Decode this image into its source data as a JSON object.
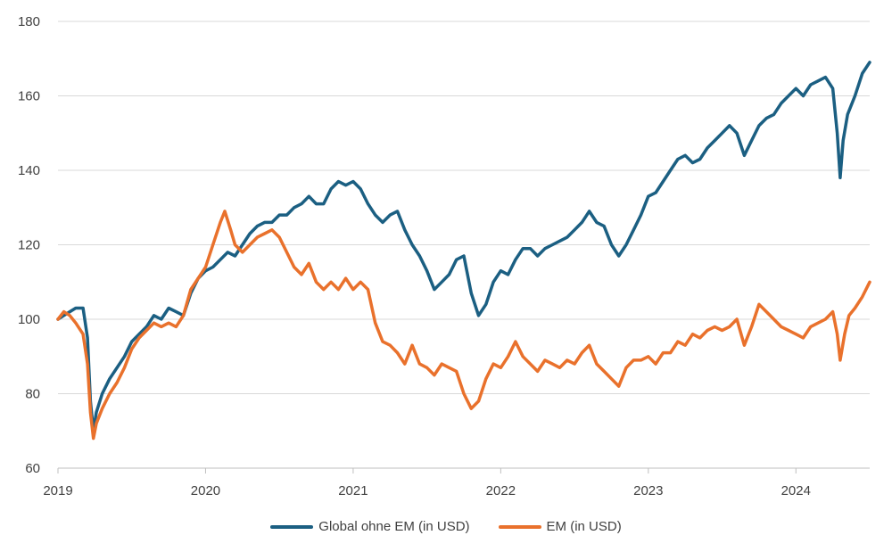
{
  "chart_data": {
    "type": "line",
    "title": "",
    "xlabel": "",
    "ylabel": "",
    "ylim": [
      60,
      180
    ],
    "yticks": [
      60,
      80,
      100,
      120,
      140,
      160,
      180
    ],
    "xlim": [
      2019.0,
      2024.5
    ],
    "xticks": [
      {
        "value": 2019,
        "label": "2019"
      },
      {
        "value": 2020,
        "label": "2020"
      },
      {
        "value": 2021,
        "label": "2021"
      },
      {
        "value": 2022,
        "label": "2022"
      },
      {
        "value": 2023,
        "label": "2023"
      },
      {
        "value": 2024,
        "label": "2024"
      }
    ],
    "grid": true,
    "legend_position": "bottom-center",
    "series": [
      {
        "name": "Global ohne EM (in USD)",
        "color": "#1B5F82",
        "points": [
          [
            2019.0,
            100
          ],
          [
            2019.04,
            101
          ],
          [
            2019.08,
            102
          ],
          [
            2019.12,
            103
          ],
          [
            2019.17,
            103
          ],
          [
            2019.2,
            95
          ],
          [
            2019.22,
            78
          ],
          [
            2019.24,
            70
          ],
          [
            2019.26,
            75
          ],
          [
            2019.3,
            80
          ],
          [
            2019.35,
            84
          ],
          [
            2019.4,
            87
          ],
          [
            2019.45,
            90
          ],
          [
            2019.5,
            94
          ],
          [
            2019.55,
            96
          ],
          [
            2019.6,
            98
          ],
          [
            2019.65,
            101
          ],
          [
            2019.7,
            100
          ],
          [
            2019.75,
            103
          ],
          [
            2019.8,
            102
          ],
          [
            2019.85,
            101
          ],
          [
            2019.9,
            107
          ],
          [
            2019.95,
            111
          ],
          [
            2020.0,
            113
          ],
          [
            2020.05,
            114
          ],
          [
            2020.1,
            116
          ],
          [
            2020.15,
            118
          ],
          [
            2020.2,
            117
          ],
          [
            2020.25,
            120
          ],
          [
            2020.3,
            123
          ],
          [
            2020.35,
            125
          ],
          [
            2020.4,
            126
          ],
          [
            2020.45,
            126
          ],
          [
            2020.5,
            128
          ],
          [
            2020.55,
            128
          ],
          [
            2020.6,
            130
          ],
          [
            2020.65,
            131
          ],
          [
            2020.7,
            133
          ],
          [
            2020.75,
            131
          ],
          [
            2020.8,
            131
          ],
          [
            2020.85,
            135
          ],
          [
            2020.9,
            137
          ],
          [
            2020.95,
            136
          ],
          [
            2021.0,
            137
          ],
          [
            2021.05,
            135
          ],
          [
            2021.1,
            131
          ],
          [
            2021.15,
            128
          ],
          [
            2021.2,
            126
          ],
          [
            2021.25,
            128
          ],
          [
            2021.3,
            129
          ],
          [
            2021.35,
            124
          ],
          [
            2021.4,
            120
          ],
          [
            2021.45,
            117
          ],
          [
            2021.5,
            113
          ],
          [
            2021.55,
            108
          ],
          [
            2021.6,
            110
          ],
          [
            2021.65,
            112
          ],
          [
            2021.7,
            116
          ],
          [
            2021.75,
            117
          ],
          [
            2021.8,
            107
          ],
          [
            2021.85,
            101
          ],
          [
            2021.9,
            104
          ],
          [
            2021.95,
            110
          ],
          [
            2022.0,
            113
          ],
          [
            2022.05,
            112
          ],
          [
            2022.1,
            116
          ],
          [
            2022.15,
            119
          ],
          [
            2022.2,
            119
          ],
          [
            2022.25,
            117
          ],
          [
            2022.3,
            119
          ],
          [
            2022.35,
            120
          ],
          [
            2022.4,
            121
          ],
          [
            2022.45,
            122
          ],
          [
            2022.5,
            124
          ],
          [
            2022.55,
            126
          ],
          [
            2022.6,
            129
          ],
          [
            2022.65,
            126
          ],
          [
            2022.7,
            125
          ],
          [
            2022.75,
            120
          ],
          [
            2022.8,
            117
          ],
          [
            2022.85,
            120
          ],
          [
            2022.9,
            124
          ],
          [
            2022.95,
            128
          ],
          [
            2023.0,
            133
          ],
          [
            2023.05,
            134
          ],
          [
            2023.1,
            137
          ],
          [
            2023.15,
            140
          ],
          [
            2023.2,
            143
          ],
          [
            2023.25,
            144
          ],
          [
            2023.3,
            142
          ],
          [
            2023.35,
            143
          ],
          [
            2023.4,
            146
          ],
          [
            2023.45,
            148
          ],
          [
            2023.5,
            150
          ],
          [
            2023.55,
            152
          ],
          [
            2023.6,
            150
          ],
          [
            2023.65,
            144
          ],
          [
            2023.7,
            148
          ],
          [
            2023.75,
            152
          ],
          [
            2023.8,
            154
          ],
          [
            2023.85,
            155
          ],
          [
            2023.9,
            158
          ],
          [
            2023.95,
            160
          ],
          [
            2024.0,
            162
          ],
          [
            2024.05,
            160
          ],
          [
            2024.1,
            163
          ],
          [
            2024.15,
            164
          ],
          [
            2024.2,
            165
          ],
          [
            2024.25,
            162
          ],
          [
            2024.28,
            150
          ],
          [
            2024.3,
            138
          ],
          [
            2024.32,
            148
          ],
          [
            2024.35,
            155
          ],
          [
            2024.4,
            160
          ],
          [
            2024.45,
            166
          ],
          [
            2024.5,
            169
          ]
        ]
      },
      {
        "name": "EM (in USD)",
        "color": "#E9712C",
        "points": [
          [
            2019.0,
            100
          ],
          [
            2019.04,
            102
          ],
          [
            2019.08,
            101
          ],
          [
            2019.12,
            99
          ],
          [
            2019.17,
            96
          ],
          [
            2019.2,
            88
          ],
          [
            2019.22,
            75
          ],
          [
            2019.24,
            68
          ],
          [
            2019.26,
            72
          ],
          [
            2019.3,
            76
          ],
          [
            2019.35,
            80
          ],
          [
            2019.4,
            83
          ],
          [
            2019.45,
            87
          ],
          [
            2019.5,
            92
          ],
          [
            2019.55,
            95
          ],
          [
            2019.6,
            97
          ],
          [
            2019.65,
            99
          ],
          [
            2019.7,
            98
          ],
          [
            2019.75,
            99
          ],
          [
            2019.8,
            98
          ],
          [
            2019.85,
            101
          ],
          [
            2019.9,
            108
          ],
          [
            2019.95,
            111
          ],
          [
            2020.0,
            114
          ],
          [
            2020.05,
            120
          ],
          [
            2020.1,
            126
          ],
          [
            2020.13,
            129
          ],
          [
            2020.17,
            124
          ],
          [
            2020.2,
            120
          ],
          [
            2020.25,
            118
          ],
          [
            2020.3,
            120
          ],
          [
            2020.35,
            122
          ],
          [
            2020.4,
            123
          ],
          [
            2020.45,
            124
          ],
          [
            2020.5,
            122
          ],
          [
            2020.55,
            118
          ],
          [
            2020.6,
            114
          ],
          [
            2020.65,
            112
          ],
          [
            2020.7,
            115
          ],
          [
            2020.75,
            110
          ],
          [
            2020.8,
            108
          ],
          [
            2020.85,
            110
          ],
          [
            2020.9,
            108
          ],
          [
            2020.95,
            111
          ],
          [
            2021.0,
            108
          ],
          [
            2021.05,
            110
          ],
          [
            2021.1,
            108
          ],
          [
            2021.15,
            99
          ],
          [
            2021.2,
            94
          ],
          [
            2021.25,
            93
          ],
          [
            2021.3,
            91
          ],
          [
            2021.35,
            88
          ],
          [
            2021.4,
            93
          ],
          [
            2021.45,
            88
          ],
          [
            2021.5,
            87
          ],
          [
            2021.55,
            85
          ],
          [
            2021.6,
            88
          ],
          [
            2021.65,
            87
          ],
          [
            2021.7,
            86
          ],
          [
            2021.75,
            80
          ],
          [
            2021.8,
            76
          ],
          [
            2021.85,
            78
          ],
          [
            2021.9,
            84
          ],
          [
            2021.95,
            88
          ],
          [
            2022.0,
            87
          ],
          [
            2022.05,
            90
          ],
          [
            2022.1,
            94
          ],
          [
            2022.15,
            90
          ],
          [
            2022.2,
            88
          ],
          [
            2022.25,
            86
          ],
          [
            2022.3,
            89
          ],
          [
            2022.35,
            88
          ],
          [
            2022.4,
            87
          ],
          [
            2022.45,
            89
          ],
          [
            2022.5,
            88
          ],
          [
            2022.55,
            91
          ],
          [
            2022.6,
            93
          ],
          [
            2022.65,
            88
          ],
          [
            2022.7,
            86
          ],
          [
            2022.75,
            84
          ],
          [
            2022.8,
            82
          ],
          [
            2022.85,
            87
          ],
          [
            2022.9,
            89
          ],
          [
            2022.95,
            89
          ],
          [
            2023.0,
            90
          ],
          [
            2023.05,
            88
          ],
          [
            2023.1,
            91
          ],
          [
            2023.15,
            91
          ],
          [
            2023.2,
            94
          ],
          [
            2023.25,
            93
          ],
          [
            2023.3,
            96
          ],
          [
            2023.35,
            95
          ],
          [
            2023.4,
            97
          ],
          [
            2023.45,
            98
          ],
          [
            2023.5,
            97
          ],
          [
            2023.55,
            98
          ],
          [
            2023.6,
            100
          ],
          [
            2023.65,
            93
          ],
          [
            2023.7,
            98
          ],
          [
            2023.75,
            104
          ],
          [
            2023.8,
            102
          ],
          [
            2023.85,
            100
          ],
          [
            2023.9,
            98
          ],
          [
            2023.95,
            97
          ],
          [
            2024.0,
            96
          ],
          [
            2024.05,
            95
          ],
          [
            2024.1,
            98
          ],
          [
            2024.15,
            99
          ],
          [
            2024.2,
            100
          ],
          [
            2024.25,
            102
          ],
          [
            2024.28,
            96
          ],
          [
            2024.3,
            89
          ],
          [
            2024.33,
            96
          ],
          [
            2024.36,
            101
          ],
          [
            2024.4,
            103
          ],
          [
            2024.45,
            106
          ],
          [
            2024.5,
            110
          ]
        ]
      }
    ]
  }
}
